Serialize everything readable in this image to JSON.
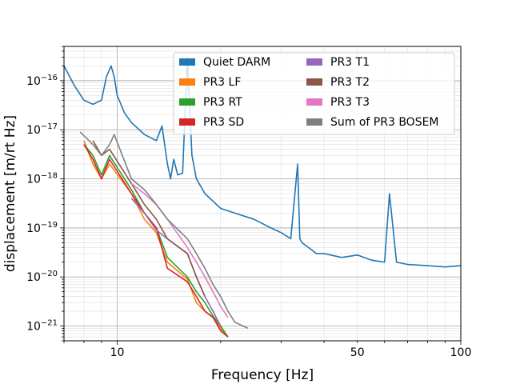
{
  "chart_data": {
    "type": "line",
    "title": "",
    "xlabel": "Frequency [Hz]",
    "ylabel": "displacement [m/rt Hz]",
    "xscale": "log",
    "yscale": "log",
    "xlim": [
      7,
      100
    ],
    "ylim": [
      5e-22,
      5e-16
    ],
    "grid": true,
    "legend_position": "top-right",
    "legend_columns": 2,
    "x_tick_labels": [
      {
        "value": 10,
        "label": "10"
      },
      {
        "value": 50,
        "label": "50"
      },
      {
        "value": 100,
        "label": "100"
      }
    ],
    "y_tick_labels": [
      {
        "value": 1e-16,
        "label": "10",
        "exp": "−16"
      },
      {
        "value": 1e-17,
        "label": "10",
        "exp": "−17"
      },
      {
        "value": 1e-18,
        "label": "10",
        "exp": "−18"
      },
      {
        "value": 1e-19,
        "label": "10",
        "exp": "−19"
      },
      {
        "value": 1e-20,
        "label": "10",
        "exp": "−20"
      },
      {
        "value": 1e-21,
        "label": "10",
        "exp": "−21"
      }
    ],
    "series": [
      {
        "name": "Quiet DARM",
        "color": "#1f77b4",
        "x": [
          7.0,
          7.5,
          8.0,
          8.5,
          9.0,
          9.3,
          9.6,
          9.8,
          10.0,
          10.5,
          11.0,
          12.0,
          13.0,
          13.5,
          14.0,
          14.3,
          14.6,
          15.0,
          15.5,
          16.0,
          16.5,
          17.0,
          18.0,
          20.0,
          22.0,
          25.0,
          28.0,
          30.0,
          32.0,
          33.5,
          34.0,
          34.5,
          36.0,
          38.0,
          40.0,
          45.0,
          50.0,
          55.0,
          60.0,
          62.0,
          65.0,
          70.0,
          80.0,
          90.0,
          100.0
        ],
        "y": [
          2e-16,
          8e-17,
          4e-17,
          3.3e-17,
          4e-17,
          1.2e-16,
          2e-16,
          1.2e-16,
          5e-17,
          2.2e-17,
          1.4e-17,
          8e-18,
          6e-18,
          1.2e-17,
          2e-18,
          1e-18,
          2.5e-18,
          1.2e-18,
          1.3e-18,
          3e-16,
          3e-18,
          1e-18,
          5e-19,
          2.5e-19,
          2e-19,
          1.5e-19,
          1e-19,
          8e-20,
          6e-20,
          2e-18,
          6e-20,
          5e-20,
          4e-20,
          3e-20,
          3e-20,
          2.5e-20,
          2.8e-20,
          2.2e-20,
          2e-20,
          5e-19,
          2e-20,
          1.8e-20,
          1.7e-20,
          1.6e-20,
          1.7e-20
        ]
      },
      {
        "name": "PR3 LF",
        "color": "#ff7f0e",
        "x": [
          8.0,
          8.5,
          9.0,
          9.5,
          11.0,
          12.0,
          13.0,
          14.0,
          16.0,
          17.0,
          18.0,
          19.0,
          20.0,
          21.0
        ],
        "y": [
          6e-18,
          2e-18,
          1e-18,
          2e-18,
          5e-19,
          1.5e-19,
          8e-20,
          2e-20,
          9e-21,
          3e-21,
          2e-21,
          1.5e-21,
          9e-22,
          6e-22
        ]
      },
      {
        "name": "PR3 RT",
        "color": "#2ca02c",
        "x": [
          8.0,
          8.5,
          9.0,
          9.5,
          11.0,
          12.0,
          13.0,
          14.0,
          16.0,
          17.0,
          18.0,
          19.0,
          20.0,
          21.0
        ],
        "y": [
          5e-18,
          3e-18,
          1.2e-18,
          3e-18,
          6e-19,
          2e-19,
          1e-19,
          2.5e-20,
          1e-20,
          5e-21,
          3e-21,
          1.6e-21,
          1e-21,
          6e-22
        ]
      },
      {
        "name": "PR3 SD",
        "color": "#d62728",
        "x": [
          8.0,
          8.5,
          9.0,
          9.5,
          11.0,
          12.0,
          13.0,
          14.0,
          16.0,
          17.0,
          18.0,
          19.0,
          20.0,
          21.0
        ],
        "y": [
          5e-18,
          2.5e-18,
          1e-18,
          2.5e-18,
          5e-19,
          2e-19,
          1e-19,
          1.5e-20,
          8e-21,
          4e-21,
          2e-21,
          1.5e-21,
          8e-22,
          6e-22
        ]
      },
      {
        "name": "PR3 T1",
        "color": "#9467bd",
        "x": [
          11.0,
          12.0,
          13.0,
          14.0,
          16.0,
          17.0,
          18.0,
          19.0,
          20.0
        ],
        "y": [
          4e-19,
          2e-19,
          9e-20,
          6e-20,
          3e-20,
          1e-20,
          4e-21,
          2e-21,
          1e-21
        ]
      },
      {
        "name": "PR3 T2",
        "color": "#8c564b",
        "x": [
          8.5,
          9.0,
          9.5,
          11.0,
          12.0,
          13.0,
          14.0,
          16.0,
          17.0,
          18.0
        ],
        "y": [
          6e-18,
          3e-18,
          4e-18,
          8e-19,
          3e-19,
          1.5e-19,
          6e-20,
          3e-20,
          1e-20,
          4e-21
        ]
      },
      {
        "name": "PR3 T3",
        "color": "#e377c2",
        "x": [
          11.0,
          12.0,
          13.0,
          14.0,
          16.0,
          17.0,
          18.0,
          19.0,
          20.0,
          21.0
        ],
        "y": [
          8e-19,
          5e-19,
          3e-19,
          1.5e-19,
          4e-20,
          2e-20,
          1e-20,
          5e-21,
          2.5e-21,
          1.5e-21
        ]
      },
      {
        "name": "Sum of PR3 BOSEM",
        "color": "#7f7f7f",
        "x": [
          7.8,
          8.5,
          9.0,
          9.5,
          9.8,
          11.0,
          12.0,
          13.0,
          14.0,
          16.0,
          17.0,
          18.0,
          19.0,
          20.0,
          21.0,
          22.0,
          24.0
        ],
        "y": [
          9e-18,
          5e-18,
          3e-18,
          5e-18,
          8e-18,
          1e-18,
          6e-19,
          3e-19,
          1.5e-19,
          6e-20,
          3e-20,
          1.5e-20,
          7e-21,
          4e-21,
          2e-21,
          1.2e-21,
          9e-22
        ]
      }
    ]
  }
}
